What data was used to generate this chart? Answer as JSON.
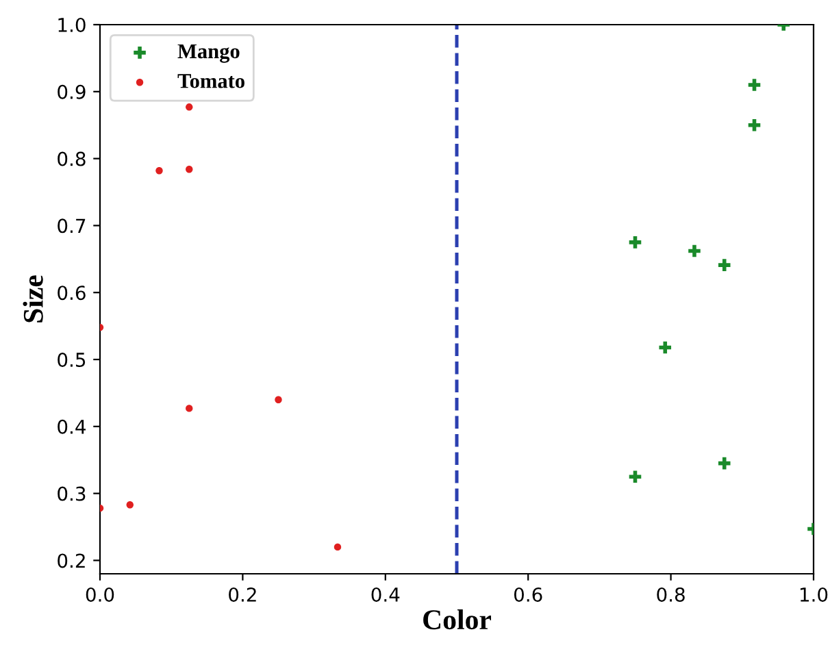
{
  "chart_data": {
    "type": "scatter",
    "xlabel": "Color",
    "ylabel": "Size",
    "series": [
      {
        "name": "Mango",
        "color": "#1a8a2a",
        "marker": "cross",
        "x": [
          0.958,
          0.917,
          0.917,
          0.75,
          0.833,
          0.875,
          0.792,
          0.75,
          0.875,
          1.0
        ],
        "values": [
          1.0,
          0.91,
          0.85,
          0.675,
          0.662,
          0.641,
          0.518,
          0.325,
          0.345,
          0.247
        ]
      },
      {
        "name": "Tomato",
        "color": "#e02020",
        "marker": "circle",
        "x": [
          0.125,
          0.083,
          0.125,
          0.0,
          0.125,
          0.25,
          0.0,
          0.042,
          0.333
        ],
        "values": [
          0.877,
          0.782,
          0.784,
          0.548,
          0.427,
          0.44,
          0.278,
          0.283,
          0.22
        ]
      }
    ],
    "xlim": [
      0,
      1
    ],
    "ylim": [
      0.18,
      1.0
    ],
    "xticks": [
      {
        "value": 0,
        "label": "0.0"
      },
      0.2,
      0.4,
      0.6,
      0.8,
      {
        "value": 1,
        "label": "1.0"
      }
    ],
    "yticks": [
      0.2,
      0.3,
      0.4,
      0.5,
      0.6,
      0.7,
      0.8,
      0.9,
      {
        "value": 1,
        "label": "1.0"
      }
    ],
    "ref_lines": [
      {
        "axis": "x",
        "value": 0.5,
        "color": "#2b3fb0",
        "line_style": "dashed"
      }
    ],
    "legend": "top left",
    "grid": false
  }
}
